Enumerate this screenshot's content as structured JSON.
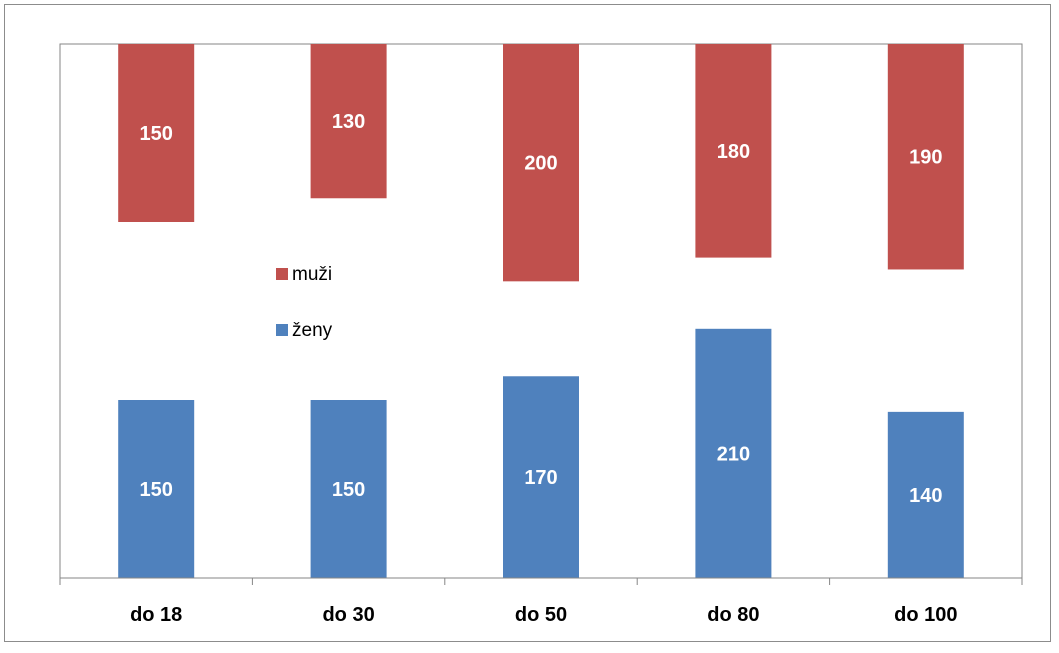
{
  "chart_data": {
    "type": "bar",
    "title": "",
    "xlabel": "",
    "ylabel": "",
    "categories": [
      "do 18",
      "do 30",
      "do 50",
      "do 80",
      "do 100"
    ],
    "series": [
      {
        "name": "muži",
        "values": [
          150,
          130,
          200,
          180,
          190
        ],
        "color": "#C0504D"
      },
      {
        "name": "ženy",
        "values": [
          150,
          150,
          170,
          210,
          140
        ],
        "color": "#4F81BD"
      }
    ],
    "ylim": [
      0,
      450
    ],
    "grid": false,
    "legend": "center-left",
    "data_labels": true
  }
}
